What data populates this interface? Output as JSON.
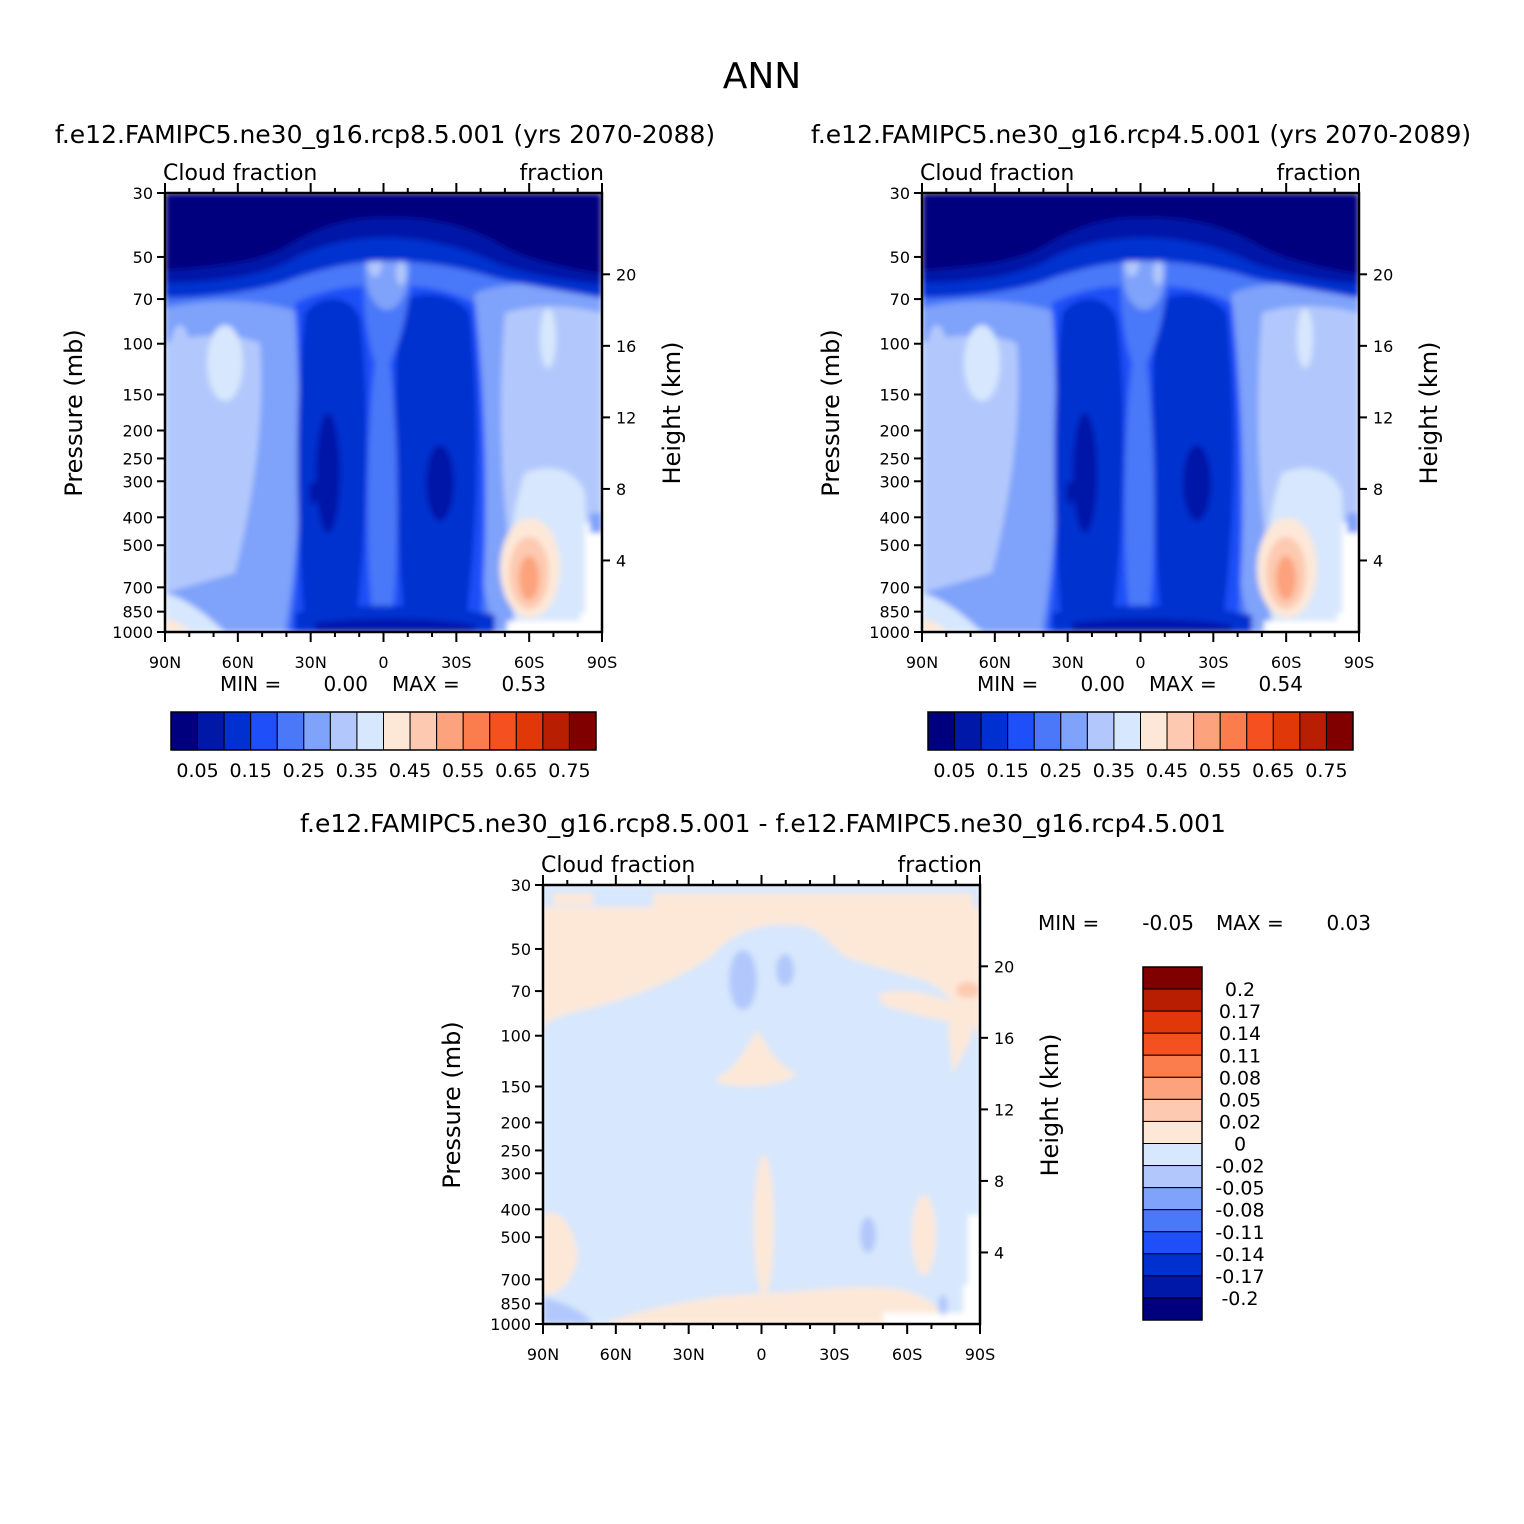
{
  "page_title": "ANN",
  "chart_data": [
    {
      "type": "heatmap",
      "id": "panel1",
      "title": "f.e12.FAMIPC5.ne30_g16.rcp8.5.001 (yrs 2070-2088)",
      "left_label": "Cloud fraction",
      "right_label": "fraction",
      "xlabel": "",
      "ylabel": "Pressure (mb)",
      "ylabel_right": "Height (km)",
      "x_ticks": [
        "90N",
        "60N",
        "30N",
        "0",
        "30S",
        "60S",
        "90S"
      ],
      "y_ticks": [
        "30",
        "50",
        "70",
        "100",
        "150",
        "200",
        "250",
        "300",
        "400",
        "500",
        "700",
        "850",
        "1000"
      ],
      "y_ticks_right": [
        "20",
        "16",
        "12",
        "8",
        "4"
      ],
      "min_label": "MIN =",
      "min_value": "0.00",
      "max_label": "MAX =",
      "max_value": "0.53",
      "colorbar_ticks": [
        "0.05",
        "0.15",
        "0.25",
        "0.35",
        "0.45",
        "0.55",
        "0.65",
        "0.75"
      ],
      "colorbar_colors": [
        "#00007f",
        "#0018a8",
        "#0030d0",
        "#1e4ff8",
        "#4a78f8",
        "#7fa2fa",
        "#b2c8fc",
        "#d7e7fd",
        "#fde8d8",
        "#fdc9b0",
        "#fca27c",
        "#fb7c4c",
        "#f45020",
        "#e03808",
        "#b81e02",
        "#800000"
      ],
      "field_summary": "zonal-mean cloud fraction, 0.00 to 0.53; minima in subtropical mid-troposphere, maxima near 60S low levels"
    },
    {
      "type": "heatmap",
      "id": "panel2",
      "title": "f.e12.FAMIPC5.ne30_g16.rcp4.5.001 (yrs 2070-2089)",
      "left_label": "Cloud fraction",
      "right_label": "fraction",
      "xlabel": "",
      "ylabel": "Pressure (mb)",
      "ylabel_right": "Height (km)",
      "x_ticks": [
        "90N",
        "60N",
        "30N",
        "0",
        "30S",
        "60S",
        "90S"
      ],
      "y_ticks": [
        "30",
        "50",
        "70",
        "100",
        "150",
        "200",
        "250",
        "300",
        "400",
        "500",
        "700",
        "850",
        "1000"
      ],
      "y_ticks_right": [
        "20",
        "16",
        "12",
        "8",
        "4"
      ],
      "min_label": "MIN =",
      "min_value": "0.00",
      "max_label": "MAX =",
      "max_value": "0.54",
      "colorbar_ticks": [
        "0.05",
        "0.15",
        "0.25",
        "0.35",
        "0.45",
        "0.55",
        "0.65",
        "0.75"
      ],
      "colorbar_colors": [
        "#00007f",
        "#0018a8",
        "#0030d0",
        "#1e4ff8",
        "#4a78f8",
        "#7fa2fa",
        "#b2c8fc",
        "#d7e7fd",
        "#fde8d8",
        "#fdc9b0",
        "#fca27c",
        "#fb7c4c",
        "#f45020",
        "#e03808",
        "#b81e02",
        "#800000"
      ],
      "field_summary": "zonal-mean cloud fraction, 0.00 to 0.54"
    },
    {
      "type": "heatmap",
      "id": "panel3",
      "title": "f.e12.FAMIPC5.ne30_g16.rcp8.5.001 - f.e12.FAMIPC5.ne30_g16.rcp4.5.001",
      "left_label": "Cloud fraction",
      "right_label": "fraction",
      "xlabel": "",
      "ylabel": "Pressure (mb)",
      "ylabel_right": "Height (km)",
      "x_ticks": [
        "90N",
        "60N",
        "30N",
        "0",
        "30S",
        "60S",
        "90S"
      ],
      "y_ticks": [
        "30",
        "50",
        "70",
        "100",
        "150",
        "200",
        "250",
        "300",
        "400",
        "500",
        "700",
        "850",
        "1000"
      ],
      "y_ticks_right": [
        "20",
        "16",
        "12",
        "8",
        "4"
      ],
      "min_label": "MIN =",
      "min_value": "-0.05",
      "max_label": "MAX =",
      "max_value": "0.03",
      "colorbar_ticks": [
        "0.2",
        "0.17",
        "0.14",
        "0.11",
        "0.08",
        "0.05",
        "0.02",
        "0",
        "-0.02",
        "-0.05",
        "-0.08",
        "-0.11",
        "-0.14",
        "-0.17",
        "-0.2"
      ],
      "colorbar_colors": [
        "#800000",
        "#b81e02",
        "#e03808",
        "#f45020",
        "#fb7c4c",
        "#fca27c",
        "#fdc9b0",
        "#fde8d8",
        "#d7e7fd",
        "#b2c8fc",
        "#7fa2fa",
        "#4a78f8",
        "#1e4ff8",
        "#0030d0",
        "#0018a8",
        "#00007f"
      ],
      "field_summary": "difference -0.05 to 0.03; mostly slightly negative (light blue) with small positive patches"
    }
  ]
}
